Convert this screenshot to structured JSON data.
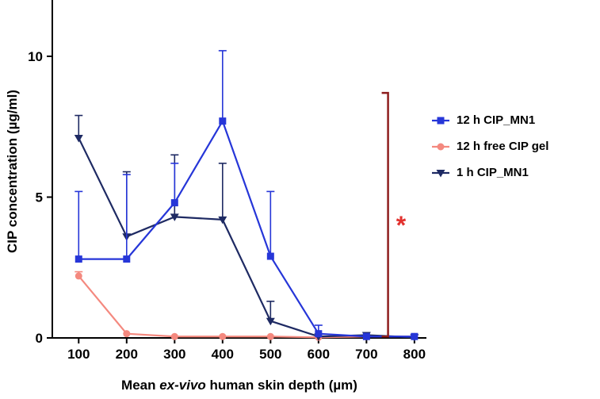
{
  "chart_data": {
    "type": "line",
    "title": "",
    "ylabel": "CIP concentration (µg/ml)",
    "xlabel_parts": [
      {
        "text": "Mean ",
        "italic": false
      },
      {
        "text": "ex-vivo",
        "italic": true
      },
      {
        "text": " human skin depth (µm)",
        "italic": false
      }
    ],
    "x": [
      100,
      200,
      300,
      400,
      500,
      600,
      700,
      800
    ],
    "x_tick_labels": [
      "100",
      "200",
      "300",
      "400",
      "500",
      "600",
      "700",
      "800"
    ],
    "y_ticks": [
      0,
      5,
      10
    ],
    "xlim": [
      45,
      825
    ],
    "ylim": [
      0,
      12
    ],
    "grid": false,
    "legend_position": "right",
    "series": [
      {
        "name": "12 h CIP_MN1",
        "marker": "square",
        "color": "#2636d8",
        "values": [
          2.8,
          2.8,
          4.8,
          7.7,
          2.9,
          0.15,
          0.05,
          0.05
        ],
        "errors_up": [
          2.4,
          3.0,
          1.4,
          2.5,
          2.3,
          0.3,
          0,
          0
        ]
      },
      {
        "name": "12 h free CIP gel",
        "marker": "circle",
        "color": "#f4897f",
        "values": [
          2.2,
          0.15,
          0.05,
          0.05,
          0.05,
          0.02,
          0.05,
          0.05
        ],
        "errors_up": [
          0.15,
          0,
          0,
          0,
          0,
          0,
          0,
          0
        ]
      },
      {
        "name": "1 h CIP_MN1",
        "marker": "triangle-down",
        "color": "#1e2a63",
        "values": [
          7.1,
          3.6,
          4.3,
          4.2,
          0.6,
          0.05,
          0.1,
          0.02
        ],
        "errors_up": [
          0.8,
          2.3,
          2.2,
          2.0,
          0.7,
          0,
          0,
          0
        ]
      }
    ],
    "annotation": {
      "type": "significance-bracket",
      "x": 745,
      "y_bottom": 0.05,
      "y_top": 8.7,
      "color": "#8e1e1e",
      "label": "*",
      "label_color": "#e2312e",
      "label_x": 772,
      "label_y": 4.0
    }
  }
}
